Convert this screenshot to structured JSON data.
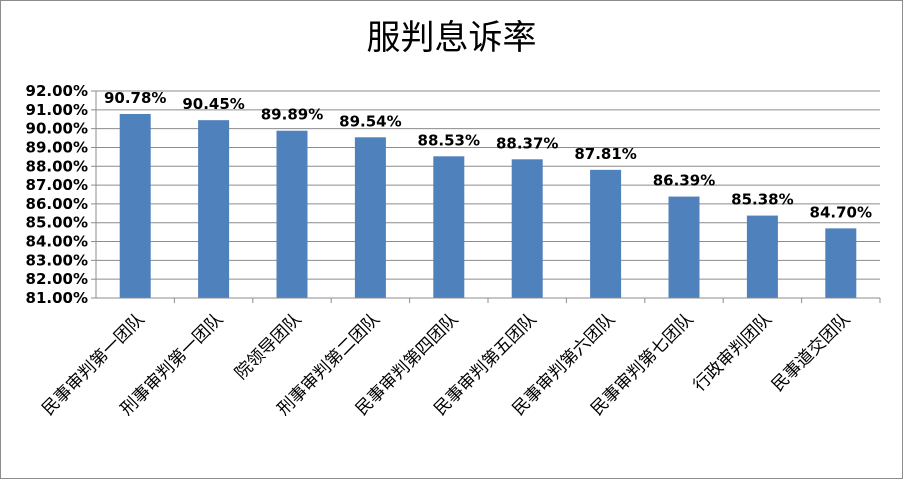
{
  "chart_data": {
    "type": "bar",
    "title": "服判息诉率",
    "categories": [
      "民事审判第一团队",
      "刑事审判第一团队",
      "院领导团队",
      "刑事审判第二团队",
      "民事审判第四团队",
      "民事审判第五团队",
      "民事审判第六团队",
      "民事审判第七团队",
      "行政审判团队",
      "民事道交团队"
    ],
    "values": [
      90.78,
      90.45,
      89.89,
      89.54,
      88.53,
      88.37,
      87.81,
      86.39,
      85.38,
      84.7
    ],
    "data_labels": [
      "90.78%",
      "90.45%",
      "89.89%",
      "89.54%",
      "88.53%",
      "88.37%",
      "87.81%",
      "86.39%",
      "85.38%",
      "84.70%"
    ],
    "y_ticks": [
      "81.00%",
      "82.00%",
      "83.00%",
      "84.00%",
      "85.00%",
      "86.00%",
      "87.00%",
      "88.00%",
      "89.00%",
      "90.00%",
      "91.00%",
      "92.00%"
    ],
    "ylim": [
      81,
      92
    ],
    "xlabel": "",
    "ylabel": "",
    "grid": true,
    "legend": "none",
    "bar_color": "#4f81bd"
  }
}
